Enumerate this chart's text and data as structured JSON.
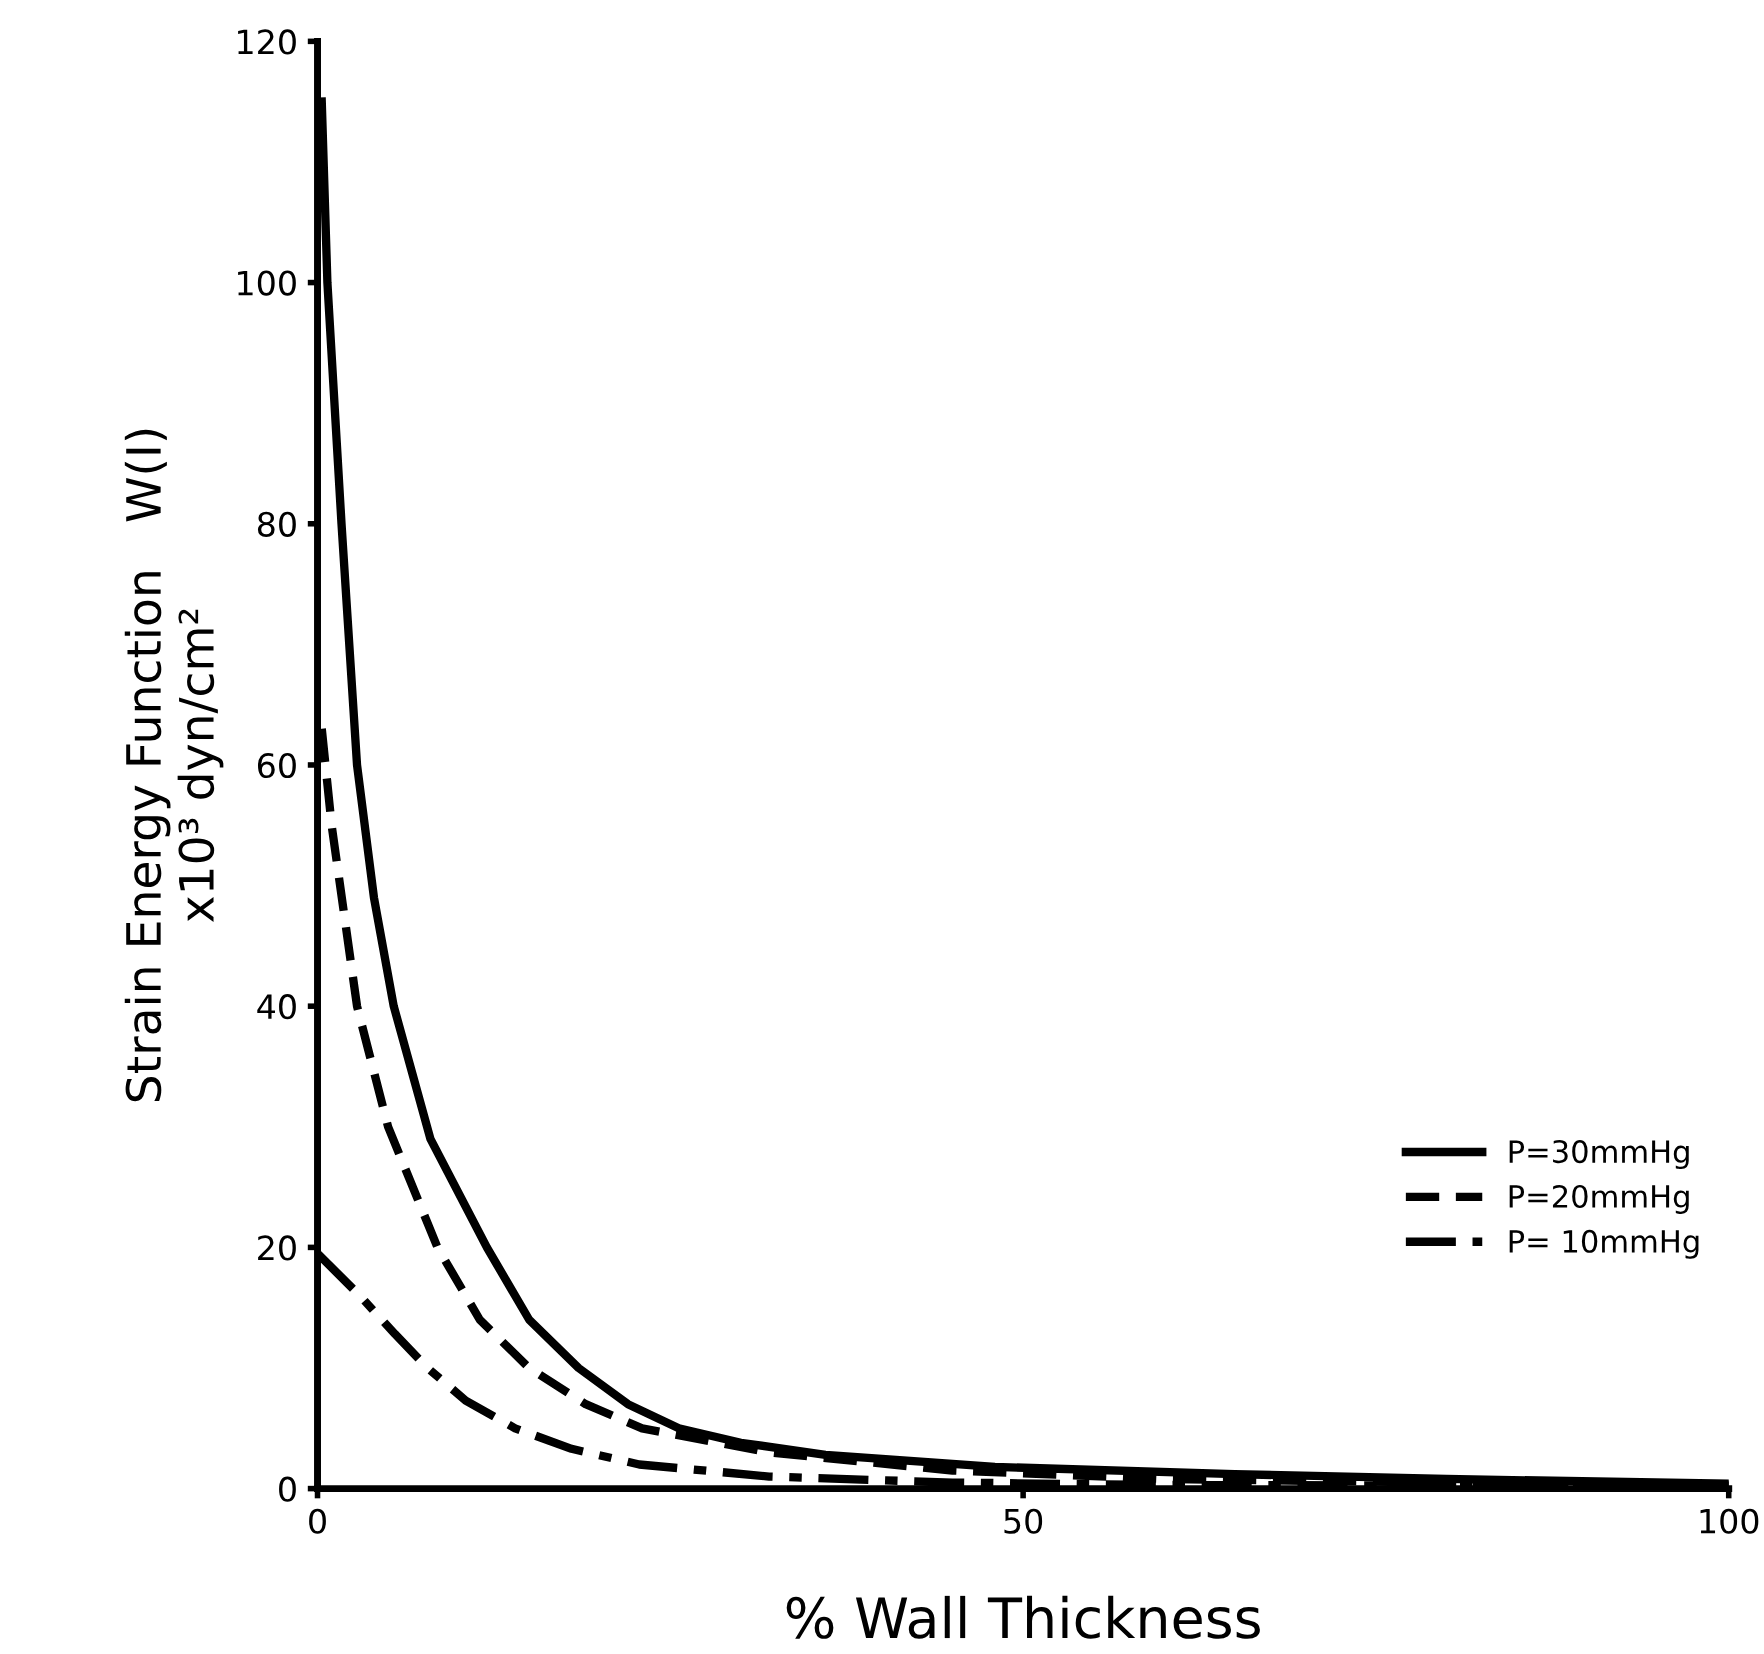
{
  "chart_data": {
    "type": "line",
    "xlabel": "% Wall Thickness",
    "ylabel": "Strain Energy Function   W(I)\nx10³ dyn/cm²",
    "xlim": [
      0,
      100
    ],
    "ylim": [
      0,
      120
    ],
    "xticks": [
      0,
      50,
      100
    ],
    "yticks": [
      0,
      20,
      40,
      60,
      80,
      100,
      120
    ],
    "grid": false,
    "legend": "right",
    "marker": "none",
    "series": [
      {
        "name": "P=30mmHg",
        "color": "#000000",
        "line_style": "solid",
        "x": [
          0.3,
          0.7,
          1.7,
          2.8,
          4,
          5.4,
          8,
          12,
          15,
          18.5,
          22,
          25.6,
          30,
          36,
          48,
          65,
          80,
          100
        ],
        "values": [
          115,
          100,
          80,
          60,
          49,
          40,
          29,
          20,
          14,
          10,
          7,
          5,
          3.8,
          2.8,
          1.8,
          1.2,
          0.8,
          0.4
        ]
      },
      {
        "name": "P=20mmHg",
        "color": "#000000",
        "line_style": "dashed",
        "x": [
          0.3,
          1,
          2.8,
          5,
          8.5,
          11.5,
          15,
          19,
          23,
          32,
          45,
          60,
          80,
          100
        ],
        "values": [
          63,
          55,
          40,
          30,
          20,
          14,
          10,
          7,
          5,
          3,
          1.5,
          0.8,
          0.5,
          0.3
        ]
      },
      {
        "name": "P= 10mmHg",
        "color": "#000000",
        "line_style": "dashdot",
        "x": [
          0,
          3,
          5.5,
          7.8,
          10.5,
          14,
          18,
          22.8,
          32,
          45,
          60,
          100
        ],
        "values": [
          19.5,
          16,
          12.8,
          10,
          7.3,
          5,
          3.3,
          2,
          1,
          0.5,
          0.3,
          0.2
        ]
      }
    ]
  }
}
